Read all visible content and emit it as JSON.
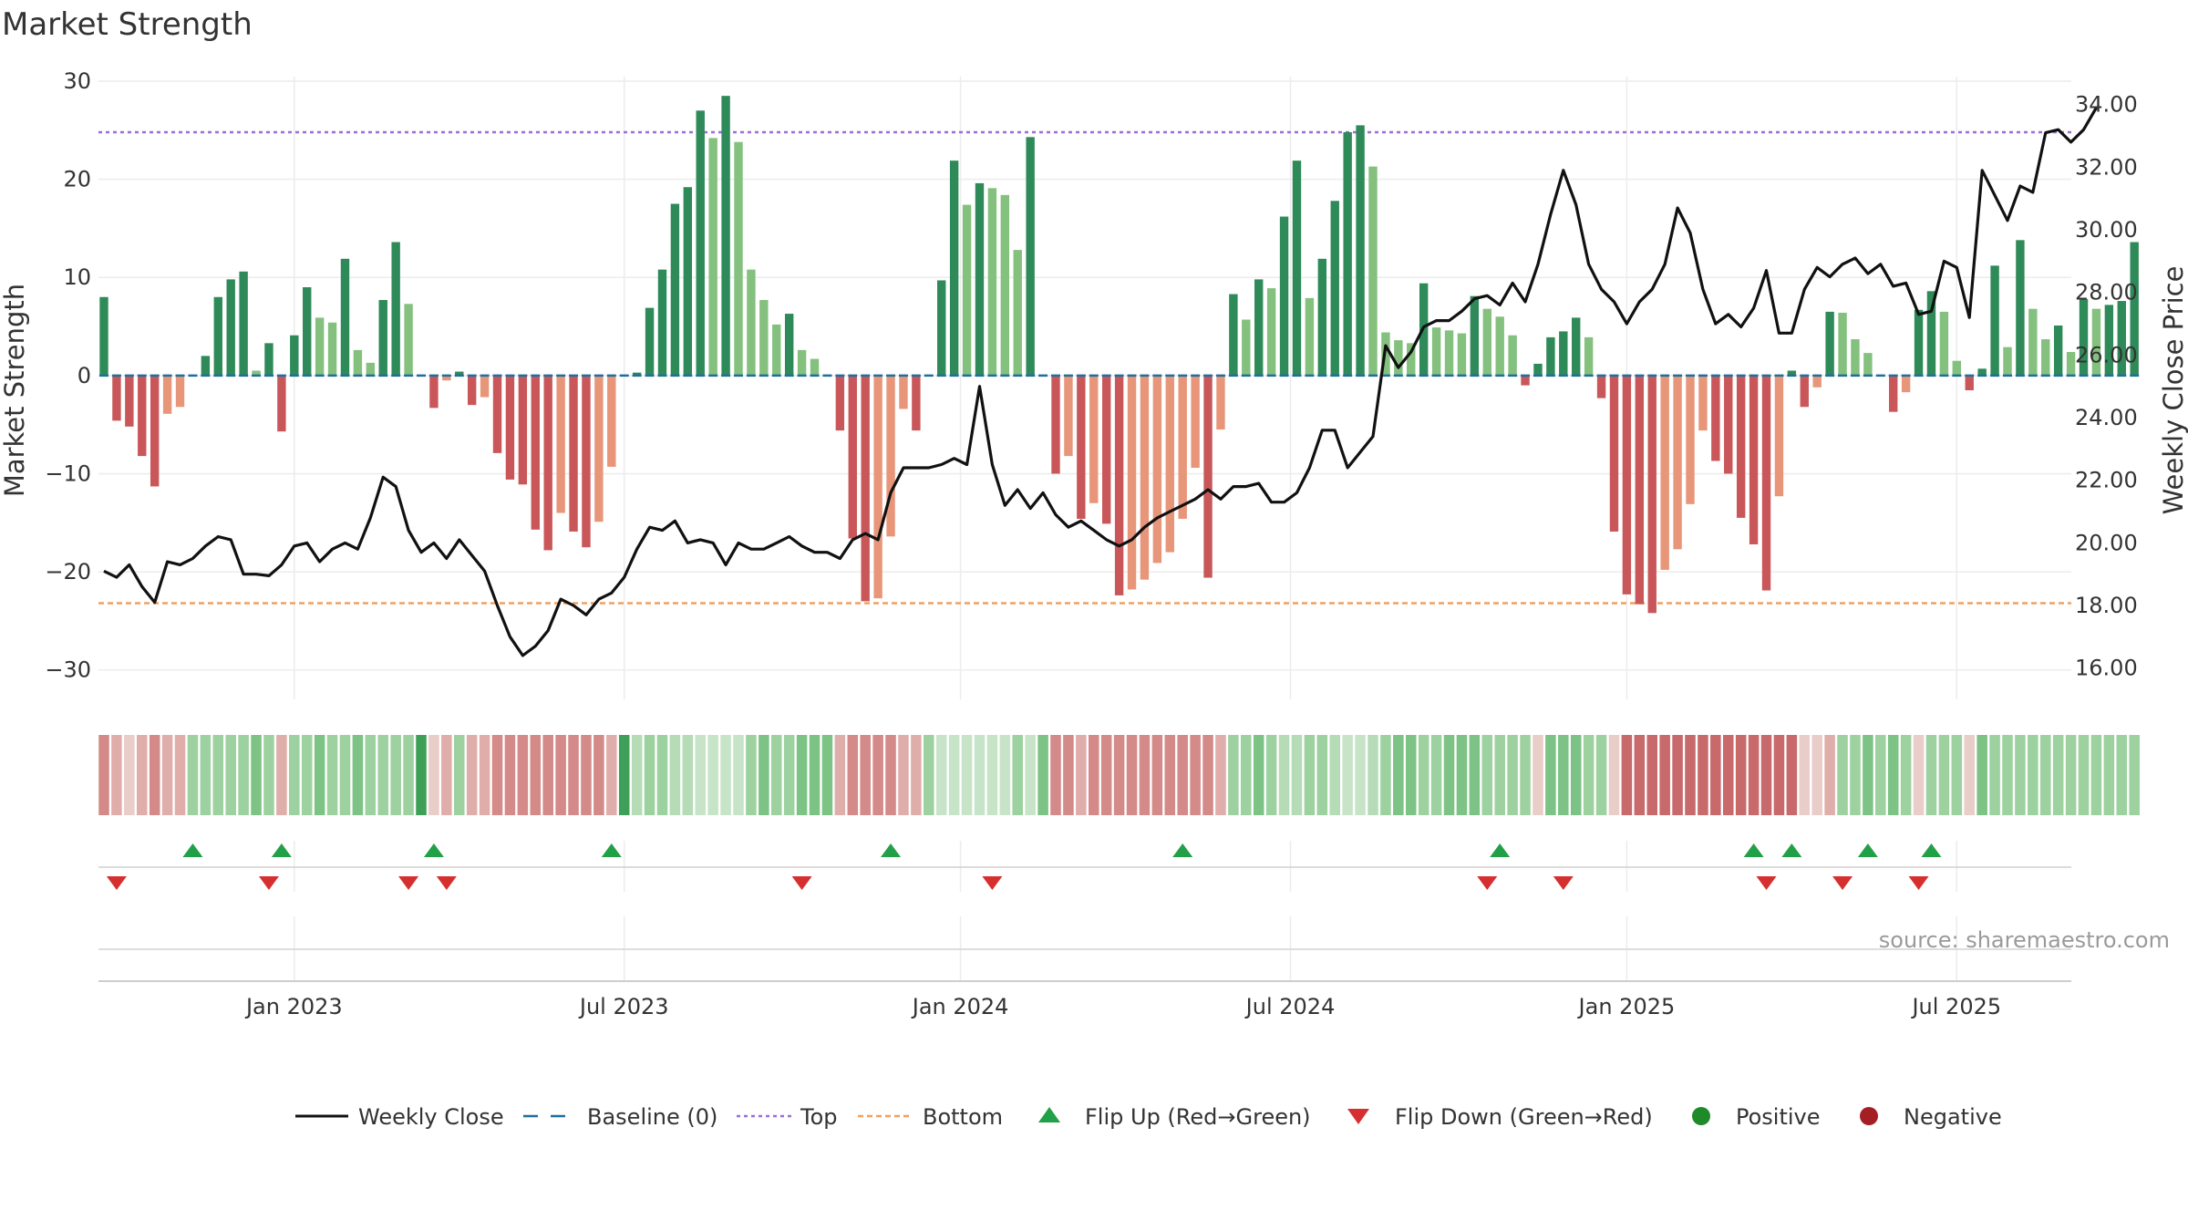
{
  "chart_data": {
    "type": "bar",
    "title": "Market Strength",
    "ylabel": "Market Strength",
    "y2label": "Weekly Close Price",
    "ylim": [
      -33,
      30
    ],
    "y2lim": [
      15.0,
      34.75
    ],
    "yticks": [
      30,
      20,
      10,
      0,
      -10,
      -20,
      -30
    ],
    "yticklabels": [
      "30",
      "20",
      "10",
      "0",
      "−10",
      "−20",
      "−30"
    ],
    "y2ticks": [
      34,
      32,
      30,
      28,
      26,
      24,
      22,
      20,
      18,
      16
    ],
    "y2ticklabels": [
      "34.00",
      "32.00",
      "30.00",
      "28.00",
      "26.00",
      "24.00",
      "22.00",
      "20.00",
      "18.00",
      "16.00"
    ],
    "xticks": [
      {
        "week": 15,
        "label": "Jan 2023"
      },
      {
        "week": 41,
        "label": "Jul 2023"
      },
      {
        "week": 67.5,
        "label": "Jan 2024"
      },
      {
        "week": 93.5,
        "label": "Jul 2024"
      },
      {
        "week": 120,
        "label": "Jan 2025"
      },
      {
        "week": 146,
        "label": "Jul 2025"
      }
    ],
    "top_line": 24.8,
    "bottom_line": -23.2,
    "strength": [
      8,
      -4.6,
      -5.2,
      -8.2,
      -11.3,
      -3.9,
      -3.2,
      0,
      2,
      8,
      9.8,
      10.6,
      0.5,
      3.3,
      -5.7,
      4.1,
      9,
      5.9,
      5.4,
      11.9,
      2.6,
      1.3,
      7.7,
      13.6,
      7.3,
      0,
      -3.3,
      -0.5,
      0.4,
      -3,
      -2.2,
      -7.9,
      -10.6,
      -11.1,
      -15.7,
      -17.8,
      -14,
      -15.9,
      -17.5,
      -14.9,
      -9.3,
      0,
      0.3,
      6.9,
      10.8,
      17.5,
      19.2,
      27,
      24.2,
      28.5,
      23.8,
      10.8,
      7.7,
      5.2,
      6.3,
      2.6,
      1.7,
      0,
      -5.6,
      -16.6,
      -23,
      -22.7,
      -16.4,
      -3.4,
      -5.6,
      0,
      9.7,
      21.9,
      17.4,
      19.6,
      19.1,
      18.4,
      12.8,
      24.3,
      0,
      -10,
      -8.2,
      -14.6,
      -13,
      -15.1,
      -22.4,
      -21.8,
      -20.8,
      -19.1,
      -18,
      -14.6,
      -9.4,
      -20.6,
      -5.5,
      8.3,
      5.7,
      9.8,
      8.9,
      16.2,
      21.9,
      7.9,
      11.9,
      17.8,
      24.8,
      25.5,
      21.3,
      4.4,
      3.6,
      3.3,
      9.4,
      4.9,
      4.6,
      4.3,
      8.1,
      6.8,
      6,
      4.1,
      -1,
      1.2,
      3.9,
      4.5,
      5.9,
      3.9,
      -2.3,
      -15.9,
      -22.3,
      -23.3,
      -24.2,
      -19.8,
      -17.7,
      -13.1,
      -5.6,
      -8.7,
      -10,
      -14.5,
      -17.2,
      -21.9,
      -12.3,
      0.5,
      -3.2,
      -1.2,
      6.5,
      6.4,
      3.7,
      2.3,
      0,
      -3.7,
      -1.7,
      6.7,
      8.6,
      6.5,
      1.5,
      -1.5,
      0.7,
      11.2,
      2.9,
      13.8,
      6.8,
      3.7,
      5.1,
      2.4,
      7.8,
      6.8,
      7.2,
      7.6,
      13.6
    ],
    "weekly_close": [
      19.1,
      18.9,
      19.3,
      18.6,
      18.1,
      19.4,
      19.3,
      19.5,
      19.9,
      20.2,
      20.1,
      19,
      19,
      18.95,
      19.3,
      19.9,
      20.0,
      19.4,
      19.8,
      20.0,
      19.8,
      20.8,
      22.1,
      21.8,
      20.4,
      19.7,
      20.0,
      19.5,
      20.1,
      19.6,
      19.1,
      18.0,
      17.0,
      16.4,
      16.7,
      17.2,
      18.2,
      18.0,
      17.7,
      18.2,
      18.4,
      18.9,
      19.8,
      20.5,
      20.4,
      20.7,
      20.0,
      20.1,
      20.0,
      19.3,
      20.0,
      19.8,
      19.8,
      20.0,
      20.2,
      19.9,
      19.7,
      19.7,
      19.5,
      20.1,
      20.3,
      20.1,
      21.6,
      22.4,
      22.4,
      22.4,
      22.5,
      22.7,
      22.5,
      25.0,
      22.5,
      21.2,
      21.7,
      21.1,
      21.6,
      20.9,
      20.5,
      20.7,
      20.4,
      20.1,
      19.9,
      20.1,
      20.5,
      20.8,
      21.0,
      21.2,
      21.4,
      21.7,
      21.4,
      21.8,
      21.8,
      21.9,
      21.3,
      21.3,
      21.6,
      22.4,
      23.6,
      23.6,
      22.4,
      22.9,
      23.4,
      26.3,
      25.6,
      26.1,
      26.9,
      27.1,
      27.1,
      27.4,
      27.8,
      27.9,
      27.6,
      28.3,
      27.7,
      28.9,
      30.5,
      31.9,
      30.8,
      28.9,
      28.1,
      27.7,
      27.0,
      27.7,
      28.1,
      28.9,
      30.7,
      29.9,
      28.1,
      27.0,
      27.3,
      26.9,
      27.5,
      28.7,
      26.7,
      26.7,
      28.1,
      28.8,
      28.5,
      28.9,
      29.1,
      28.6,
      28.9,
      28.2,
      28.3,
      27.3,
      27.4,
      29.0,
      28.8,
      27.2,
      31.9,
      31.1,
      30.3,
      31.4,
      31.2,
      33.1,
      33.2,
      32.8,
      33.2,
      33.9
    ],
    "heat_strip": [
      1,
      2,
      3,
      2,
      1,
      2,
      2,
      6,
      6,
      6,
      6,
      6,
      7,
      6,
      2,
      6,
      6,
      7,
      6,
      6,
      7,
      6,
      6,
      6,
      6,
      8,
      3,
      2,
      6,
      2,
      2,
      1,
      1,
      1,
      1,
      1,
      1,
      1,
      1,
      1,
      2,
      8,
      5,
      6,
      6,
      5,
      5,
      4,
      4,
      4,
      4,
      6,
      7,
      6,
      6,
      7,
      7,
      7,
      2,
      1,
      1,
      1,
      1,
      2,
      2,
      6,
      4,
      4,
      4,
      4,
      4,
      4,
      6,
      4,
      7,
      1,
      1,
      2,
      1,
      1,
      1,
      1,
      1,
      1,
      1,
      1,
      1,
      1,
      2,
      6,
      6,
      7,
      6,
      5,
      5,
      6,
      6,
      5,
      4,
      4,
      5,
      6,
      7,
      7,
      6,
      6,
      7,
      7,
      7,
      6,
      6,
      6,
      6,
      3,
      7,
      7,
      7,
      6,
      6,
      3,
      0,
      0,
      0,
      0,
      0,
      0,
      0,
      0,
      0,
      0,
      0,
      0,
      0,
      0,
      3,
      3,
      2,
      6,
      6,
      7,
      6,
      7,
      6,
      3,
      6,
      6,
      6,
      3,
      7,
      6,
      6,
      6,
      6,
      6,
      6,
      6,
      6,
      6,
      6,
      6,
      6
    ],
    "flip_up_weeks": [
      7,
      14,
      26,
      40,
      62,
      85,
      110,
      130,
      133,
      139,
      144
    ],
    "flip_down_weeks": [
      1,
      13,
      24,
      27,
      55,
      70,
      109,
      115,
      131,
      137,
      143
    ],
    "source": "source: sharemaestro.com",
    "legend": [
      {
        "key": "close",
        "label": "Weekly Close",
        "color": "#111111"
      },
      {
        "key": "baseline",
        "label": "Baseline (0)",
        "color": "#1f6f9a"
      },
      {
        "key": "top",
        "label": "Top",
        "color": "#9b6fd6"
      },
      {
        "key": "bottom",
        "label": "Bottom",
        "color": "#f0a060"
      },
      {
        "key": "flip_up",
        "label": "Flip Up (Red→Green)",
        "color": "#22a047"
      },
      {
        "key": "flip_down",
        "label": "Flip Down (Green→Red)",
        "color": "#d62f2f"
      },
      {
        "key": "positive",
        "label": "Positive",
        "color": "#1f8a2a"
      },
      {
        "key": "negative",
        "label": "Negative",
        "color": "#a41f24"
      }
    ],
    "colors": {
      "pos_dark": "#2e8a58",
      "pos_light": "#84c07e",
      "neg_dark": "#c9575a",
      "neg_light": "#e8967a",
      "close_line": "#111111",
      "baseline": "#1f6f9a",
      "top_line": "#9b6fd6",
      "bottom_line": "#f0a060",
      "strip": [
        "#c8696b",
        "#d38a88",
        "#dfaeaa",
        "#e9cdc9",
        "#c8e4c8",
        "#b5dcb6",
        "#9dd1a0",
        "#7dc386",
        "#3e9f58"
      ]
    }
  }
}
